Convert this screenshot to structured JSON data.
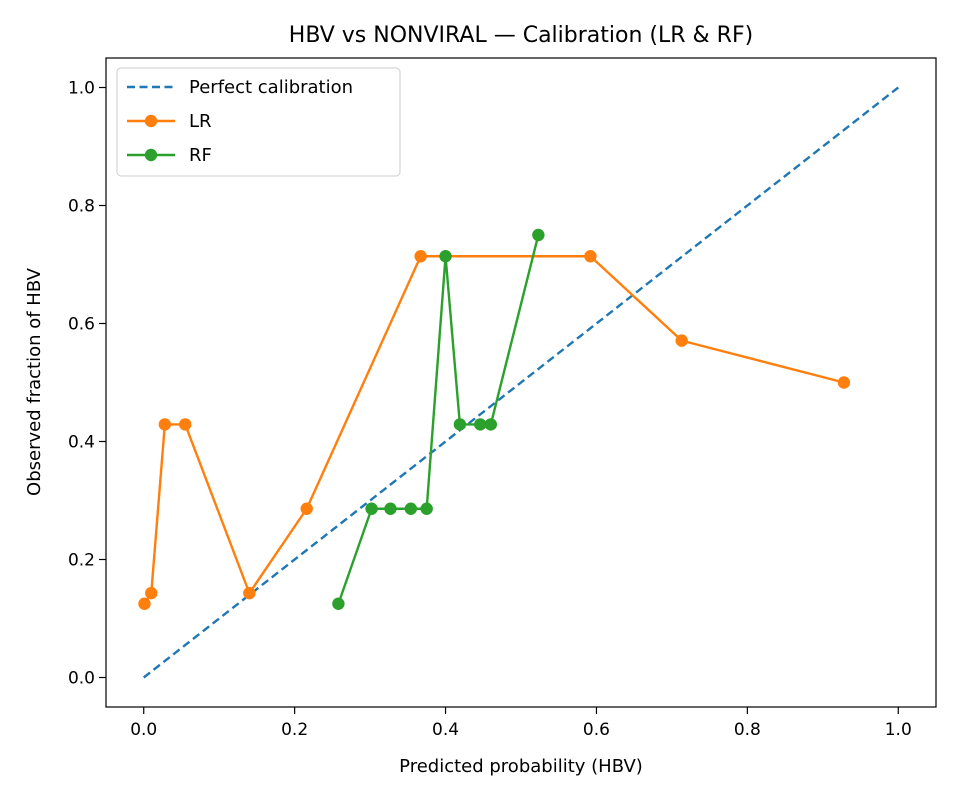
{
  "chart_data": {
    "type": "line",
    "title": "HBV vs NONVIRAL — Calibration (LR & RF)",
    "xlabel": "Predicted probability (HBV)",
    "ylabel": "Observed fraction of HBV",
    "xlim": [
      -0.05,
      1.05
    ],
    "ylim": [
      -0.05,
      1.05
    ],
    "xticks": [
      "0.0",
      "0.2",
      "0.4",
      "0.6",
      "0.8",
      "1.0"
    ],
    "yticks": [
      "0.0",
      "0.2",
      "0.4",
      "0.6",
      "0.8",
      "1.0"
    ],
    "grid": false,
    "legend_position": "top-left",
    "series": [
      {
        "name": "Perfect calibration",
        "color": "#1f77b4",
        "style": "dashed",
        "marker": false,
        "x": [
          0.0,
          1.0
        ],
        "y": [
          0.0,
          1.0
        ]
      },
      {
        "name": "LR",
        "color": "#ff7f0e",
        "style": "solid",
        "marker": true,
        "x": [
          0.001,
          0.01,
          0.028,
          0.055,
          0.14,
          0.216,
          0.367,
          0.592,
          0.713,
          0.928
        ],
        "y": [
          0.125,
          0.143,
          0.429,
          0.429,
          0.143,
          0.286,
          0.714,
          0.714,
          0.571,
          0.5
        ]
      },
      {
        "name": "RF",
        "color": "#2ca02c",
        "style": "solid",
        "marker": true,
        "x": [
          0.258,
          0.302,
          0.327,
          0.354,
          0.375,
          0.4,
          0.419,
          0.446,
          0.46,
          0.523
        ],
        "y": [
          0.125,
          0.286,
          0.286,
          0.286,
          0.286,
          0.714,
          0.429,
          0.429,
          0.429,
          0.75
        ]
      }
    ]
  }
}
